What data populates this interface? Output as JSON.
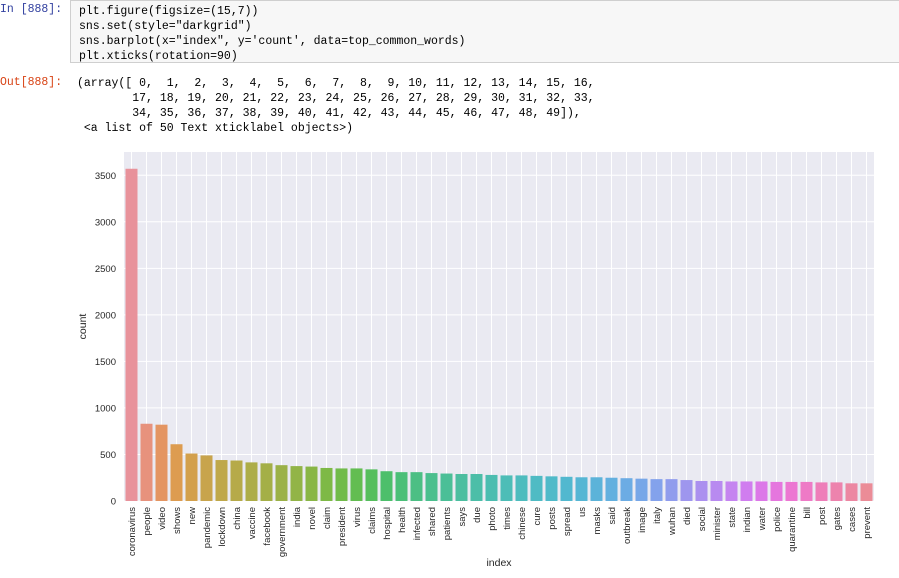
{
  "cell_in": {
    "prompt": "In [888]:",
    "lines": [
      "plt.figure(figsize=(15,7))",
      "sns.set(style=\"darkgrid\")",
      "sns.barplot(x=\"index\", y='count', data=top_common_words)",
      "plt.xticks(rotation=90)"
    ]
  },
  "cell_out": {
    "prompt": "Out[888]:",
    "lines": [
      "(array([ 0,  1,  2,  3,  4,  5,  6,  7,  8,  9, 10, 11, 12, 13, 14, 15, 16,",
      "        17, 18, 19, 20, 21, 22, 23, 24, 25, 26, 27, 28, 29, 30, 31, 32, 33,",
      "        34, 35, 36, 37, 38, 39, 40, 41, 42, 43, 44, 45, 46, 47, 48, 49]),",
      " <a list of 50 Text xticklabel objects>)"
    ]
  },
  "chart_data": {
    "type": "bar",
    "xlabel": "index",
    "ylabel": "count",
    "ylim": [
      0,
      3750
    ],
    "yticks": [
      0,
      500,
      1000,
      1500,
      2000,
      2500,
      3000,
      3500
    ],
    "grid": true,
    "categories": [
      "coronavirus",
      "people",
      "video",
      "shows",
      "new",
      "pandemic",
      "lockdown",
      "china",
      "vaccine",
      "facebook",
      "government",
      "india",
      "novel",
      "claim",
      "president",
      "virus",
      "claims",
      "hospital",
      "health",
      "infected",
      "shared",
      "patients",
      "says",
      "due",
      "photo",
      "times",
      "chinese",
      "cure",
      "posts",
      "spread",
      "us",
      "masks",
      "said",
      "outbreak",
      "image",
      "italy",
      "wuhan",
      "died",
      "social",
      "minister",
      "state",
      "indian",
      "water",
      "police",
      "quarantine",
      "bill",
      "post",
      "gates",
      "cases",
      "prevent"
    ],
    "values": [
      3570,
      830,
      820,
      610,
      510,
      490,
      440,
      435,
      415,
      405,
      385,
      375,
      370,
      355,
      350,
      350,
      340,
      320,
      310,
      310,
      300,
      295,
      290,
      290,
      280,
      275,
      275,
      270,
      265,
      260,
      255,
      255,
      250,
      245,
      240,
      235,
      235,
      225,
      215,
      215,
      210,
      210,
      210,
      205,
      205,
      205,
      200,
      200,
      190,
      190
    ],
    "colors": [
      "#e8929b",
      "#e7927d",
      "#e49562",
      "#dd9c50",
      "#d3a04c",
      "#c8a44c",
      "#bfa84a",
      "#b6aa49",
      "#adad48",
      "#a4af47",
      "#9bb147",
      "#92b447",
      "#89b646",
      "#7eb946",
      "#71bb4a",
      "#63bd51",
      "#56be5d",
      "#4dbf6b",
      "#4bbf78",
      "#4cbf84",
      "#4bbf8e",
      "#4bbf97",
      "#4cbea0",
      "#4cbea8",
      "#4cbdb0",
      "#4dbdb7",
      "#4ebcbe",
      "#4fbbc4",
      "#50bac9",
      "#52b8cf",
      "#56b6d4",
      "#5cb3d9",
      "#63b0df",
      "#6cace4",
      "#77a7e8",
      "#83a2ec",
      "#909ced",
      "#9e96ee",
      "#ab90ef",
      "#b88af0",
      "#c584f0",
      "#d07def",
      "#dc78e8",
      "#e576de",
      "#ec77d2",
      "#ee7ac6",
      "#ee7eb9",
      "#ed83ad",
      "#ec87a2",
      "#eb8c97"
    ]
  }
}
